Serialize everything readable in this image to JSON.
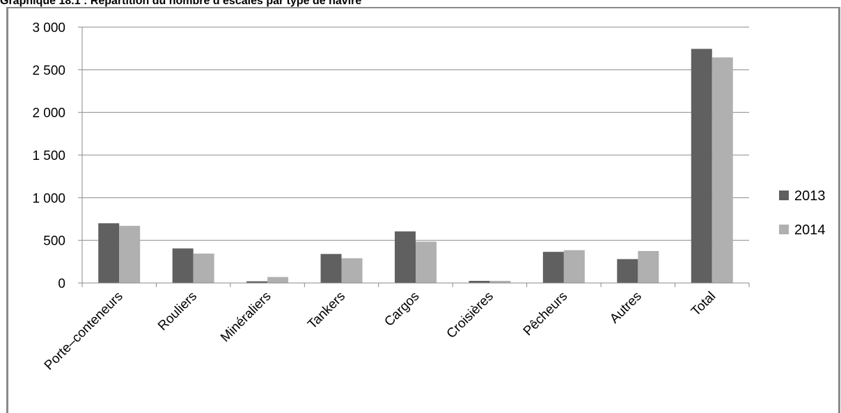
{
  "chart_data": {
    "type": "bar",
    "title": "Graphique 18.1 : Répartition du nombre d’escales par type de navire",
    "xlabel": "",
    "ylabel": "",
    "ylim": [
      0,
      3000
    ],
    "yticks": [
      0,
      500,
      1000,
      1500,
      2000,
      2500,
      3000
    ],
    "ytick_labels": [
      "0",
      "500",
      "1 000",
      "1 500",
      "2 000",
      "2 500",
      "3 000"
    ],
    "grid": "horizontal",
    "legend": "right",
    "categories": [
      "Porte–conteneurs",
      "Rouliers",
      "Minéraliers",
      "Tankers",
      "Cargos",
      "Croisières",
      "Pêcheurs",
      "Autres",
      "Total"
    ],
    "series": [
      {
        "name": "2013",
        "color": "#606060",
        "values": [
          700,
          405,
          20,
          340,
          605,
          25,
          365,
          280,
          2745
        ]
      },
      {
        "name": "2014",
        "color": "#b0b0b0",
        "values": [
          670,
          345,
          70,
          290,
          485,
          25,
          385,
          375,
          2645
        ]
      }
    ]
  }
}
